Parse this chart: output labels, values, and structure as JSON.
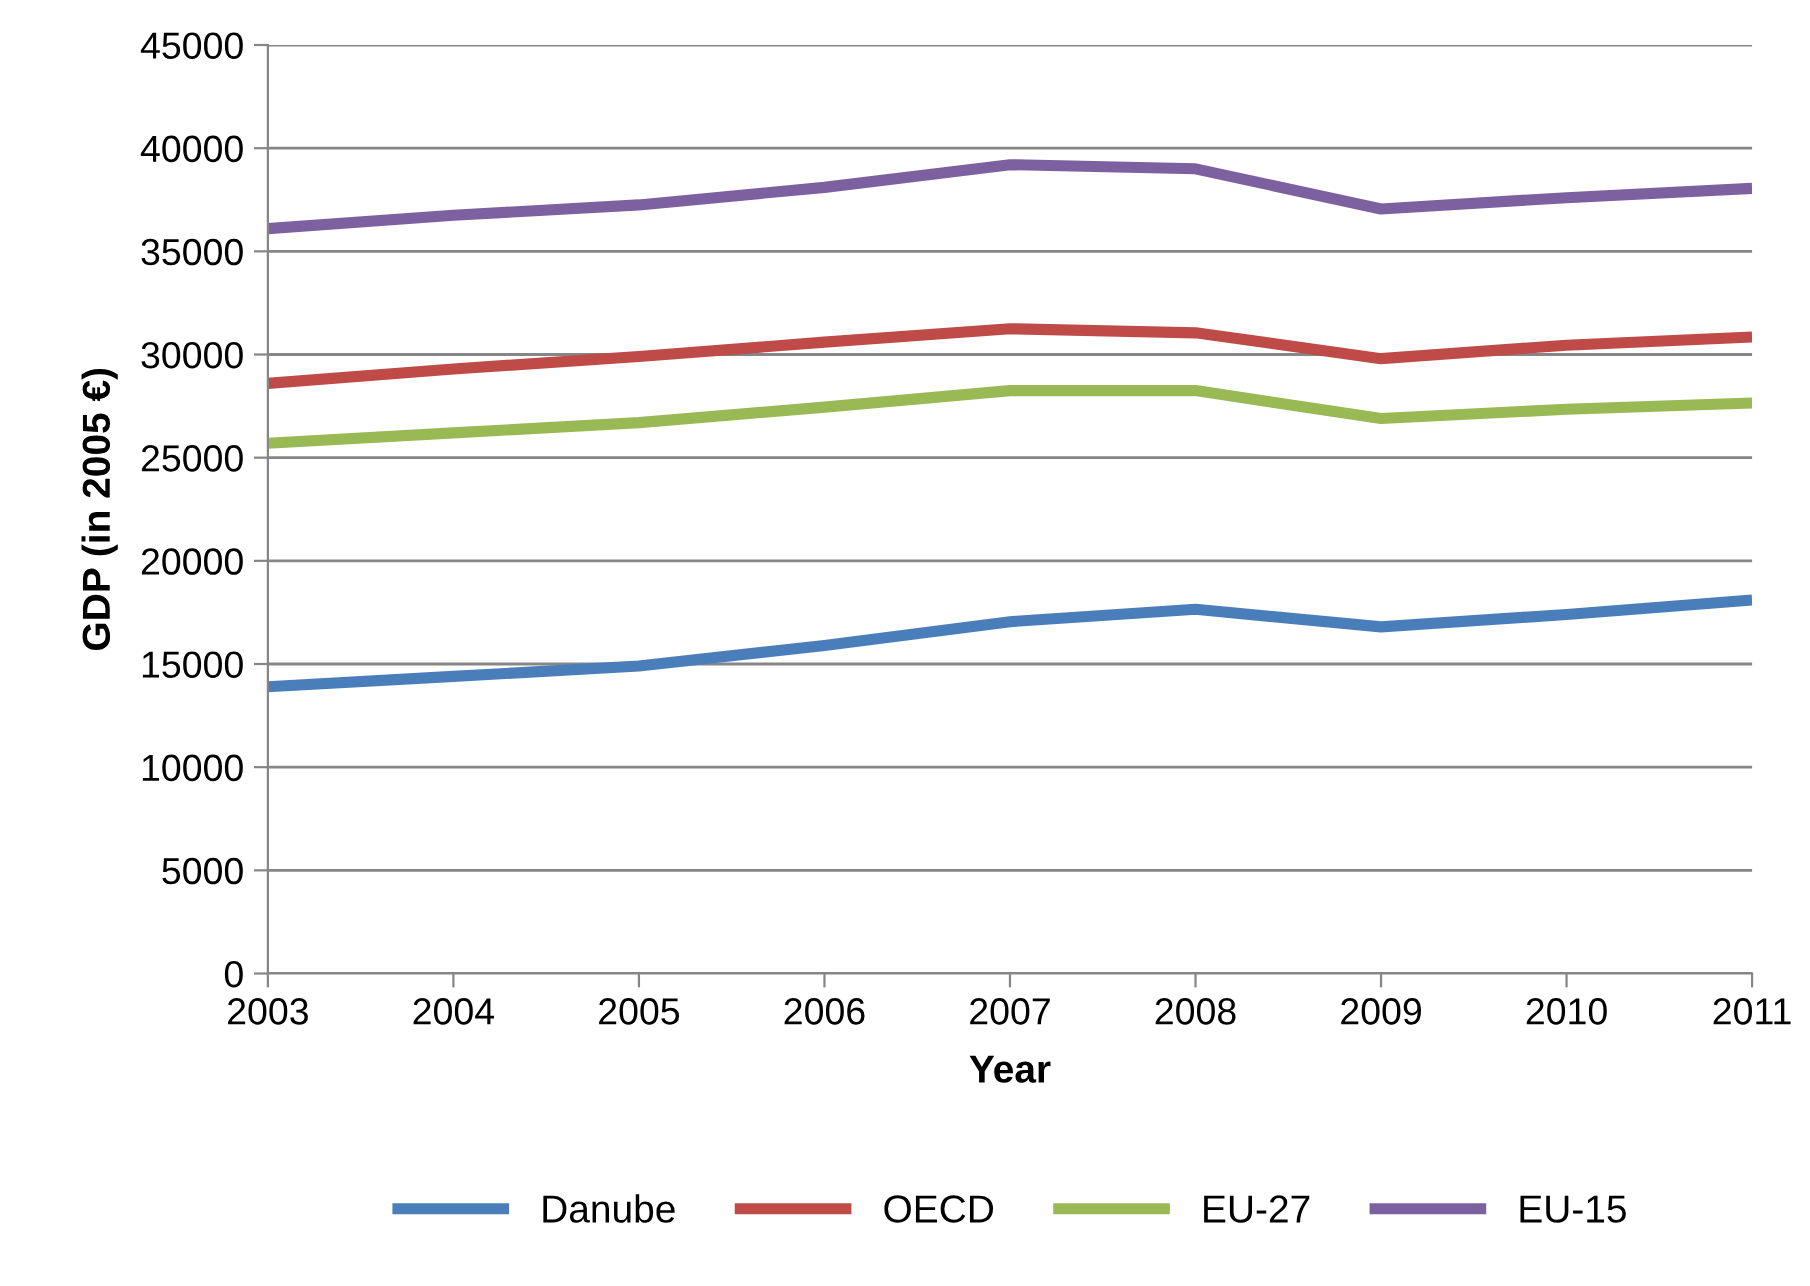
{
  "chart_data": {
    "type": "line",
    "xlabel": "Year",
    "ylabel": "GDP (in 2005 €)",
    "x": [
      2003,
      2004,
      2005,
      2006,
      2007,
      2008,
      2009,
      2010,
      2011
    ],
    "xlim": [
      2003,
      2011
    ],
    "xticks": [
      2003,
      2004,
      2005,
      2006,
      2007,
      2008,
      2009,
      2010,
      2011
    ],
    "ylim": [
      0,
      45000
    ],
    "yticks": [
      0,
      5000,
      10000,
      15000,
      20000,
      25000,
      30000,
      35000,
      40000,
      45000
    ],
    "grid": "y",
    "legend": "bottom",
    "marker": "none",
    "line_style": "solid",
    "series": [
      {
        "name": "Danube",
        "color": "#4a7ebb",
        "values": [
          13900,
          14400,
          14900,
          15900,
          17050,
          17650,
          16800,
          17400,
          18100
        ]
      },
      {
        "name": "OECD",
        "color": "#be4b48",
        "values": [
          28600,
          29300,
          29900,
          30600,
          31250,
          31050,
          29800,
          30450,
          30850
        ]
      },
      {
        "name": "EU-27",
        "color": "#98b954",
        "values": [
          25700,
          26200,
          26700,
          27450,
          28250,
          28250,
          26900,
          27350,
          27650
        ]
      },
      {
        "name": "EU-15",
        "color": "#7d60a0",
        "values": [
          36100,
          36750,
          37250,
          38100,
          39200,
          39000,
          37050,
          37600,
          38050
        ]
      }
    ]
  }
}
